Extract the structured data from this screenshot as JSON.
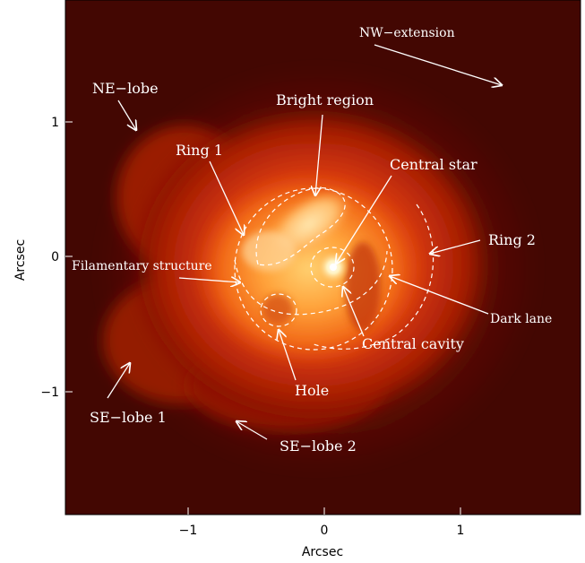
{
  "axes": {
    "xlabel": "Arcsec",
    "ylabel": "Arcsec",
    "x_ticks": [
      "−1",
      "0",
      "1"
    ],
    "y_ticks": [
      "1",
      "0",
      "−1"
    ]
  },
  "annotations": {
    "nw_extension": "NW−extension",
    "ne_lobe": "NE−lobe",
    "bright_region": "Bright region",
    "ring1": "Ring 1",
    "central_star": "Central star",
    "ring2": "Ring 2",
    "filamentary": "Filamentary structure",
    "dark_lane": "Dark lane",
    "central_cavity": "Central cavity",
    "hole": "Hole",
    "se_lobe1": "SE−lobe 1",
    "se_lobe2": "SE−lobe 2"
  },
  "colors": {
    "background_dark": "#3a0500",
    "nebula_mid": "#c0260a",
    "nebula_bright": "#ff8a20",
    "core": "#fff6d0",
    "annotation": "#ffffff"
  }
}
